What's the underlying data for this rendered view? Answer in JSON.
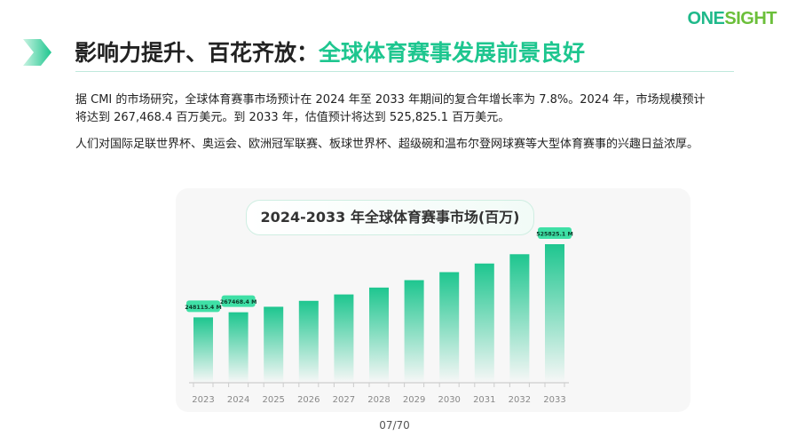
{
  "header": {
    "logo_text": "ONESIGHT",
    "title_main": "影响力提升、百花齐放：",
    "title_highlight": "全球体育赛事发展前景良好"
  },
  "body": {
    "paragraph_1": "据 CMI 的市场研究，全球体育赛事市场预计在 2024 年至 2033 年期间的复合年增长率为 7.8%。2024 年，市场规模预计将达到 267,468.4 百万美元。到 2033 年，估值预计将达到 525,825.1 百万美元。",
    "paragraph_2": "人们对国际足联世界杯、奥运会、欧洲冠军联赛、板球世界杯、超级碗和温布尔登网球赛等大型体育赛事的兴趣日益浓厚。"
  },
  "chart_data": {
    "type": "bar",
    "title": "2024-2033 年全球体育赛事市场(百万)",
    "categories": [
      "2023",
      "2024",
      "2025",
      "2026",
      "2027",
      "2028",
      "2029",
      "2030",
      "2031",
      "2032",
      "2033"
    ],
    "values": [
      248115.4,
      267468.4,
      288331,
      310821,
      335065,
      361200,
      389374,
      419745,
      452485,
      487779,
      525825.1
    ],
    "data_labels": {
      "0": "248115.4 M",
      "1": "267468.4 M",
      "10": "525825.1 M"
    },
    "ylim": [
      0,
      540000
    ],
    "grid": false,
    "bar_color": "#1ec68f"
  },
  "footer": {
    "page": "07/70"
  }
}
